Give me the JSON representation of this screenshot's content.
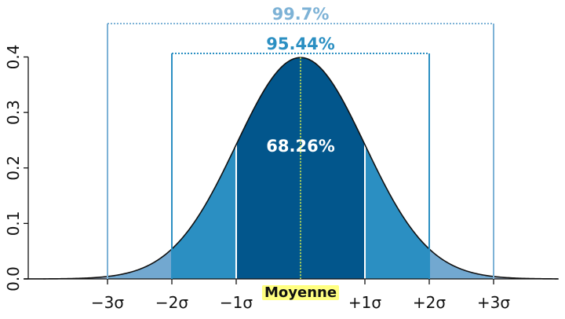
{
  "chart_data": {
    "type": "area",
    "distribution": "normal",
    "mean": 0,
    "sd": 1,
    "x_range": [
      -4.3,
      4.0
    ],
    "ylim": [
      0,
      0.4
    ],
    "y_ticks": [
      "0.0",
      "0.1",
      "0.2",
      "0.3",
      "0.4"
    ],
    "y_tick_values": [
      0,
      0.1,
      0.2,
      0.3,
      0.4
    ],
    "x_ticks": [
      "−3σ",
      "−2σ",
      "−1σ",
      "+1σ",
      "+2σ",
      "+3σ"
    ],
    "x_tick_values": [
      -3,
      -2,
      -1,
      1,
      2,
      3
    ],
    "mean_label": "Moyenne",
    "intervals": [
      {
        "label": "68.26%",
        "from": -1,
        "to": 1,
        "color": "#02568c"
      },
      {
        "label": "95.44%",
        "from": -2,
        "to": 2,
        "color": "#2b8fc2",
        "bracket_color": "#2b8fc2"
      },
      {
        "label": "99.7%",
        "from": -3,
        "to": 3,
        "color": "#72a8d0",
        "bracket_color": "#7db2d6"
      }
    ],
    "colors": {
      "inner": "#02568c",
      "middle": "#2b8fc2",
      "outer": "#72a8d0",
      "tail": "#9db6d1",
      "mean_line": "#d8f04a",
      "mean_label_bg": "#ffff80"
    }
  }
}
